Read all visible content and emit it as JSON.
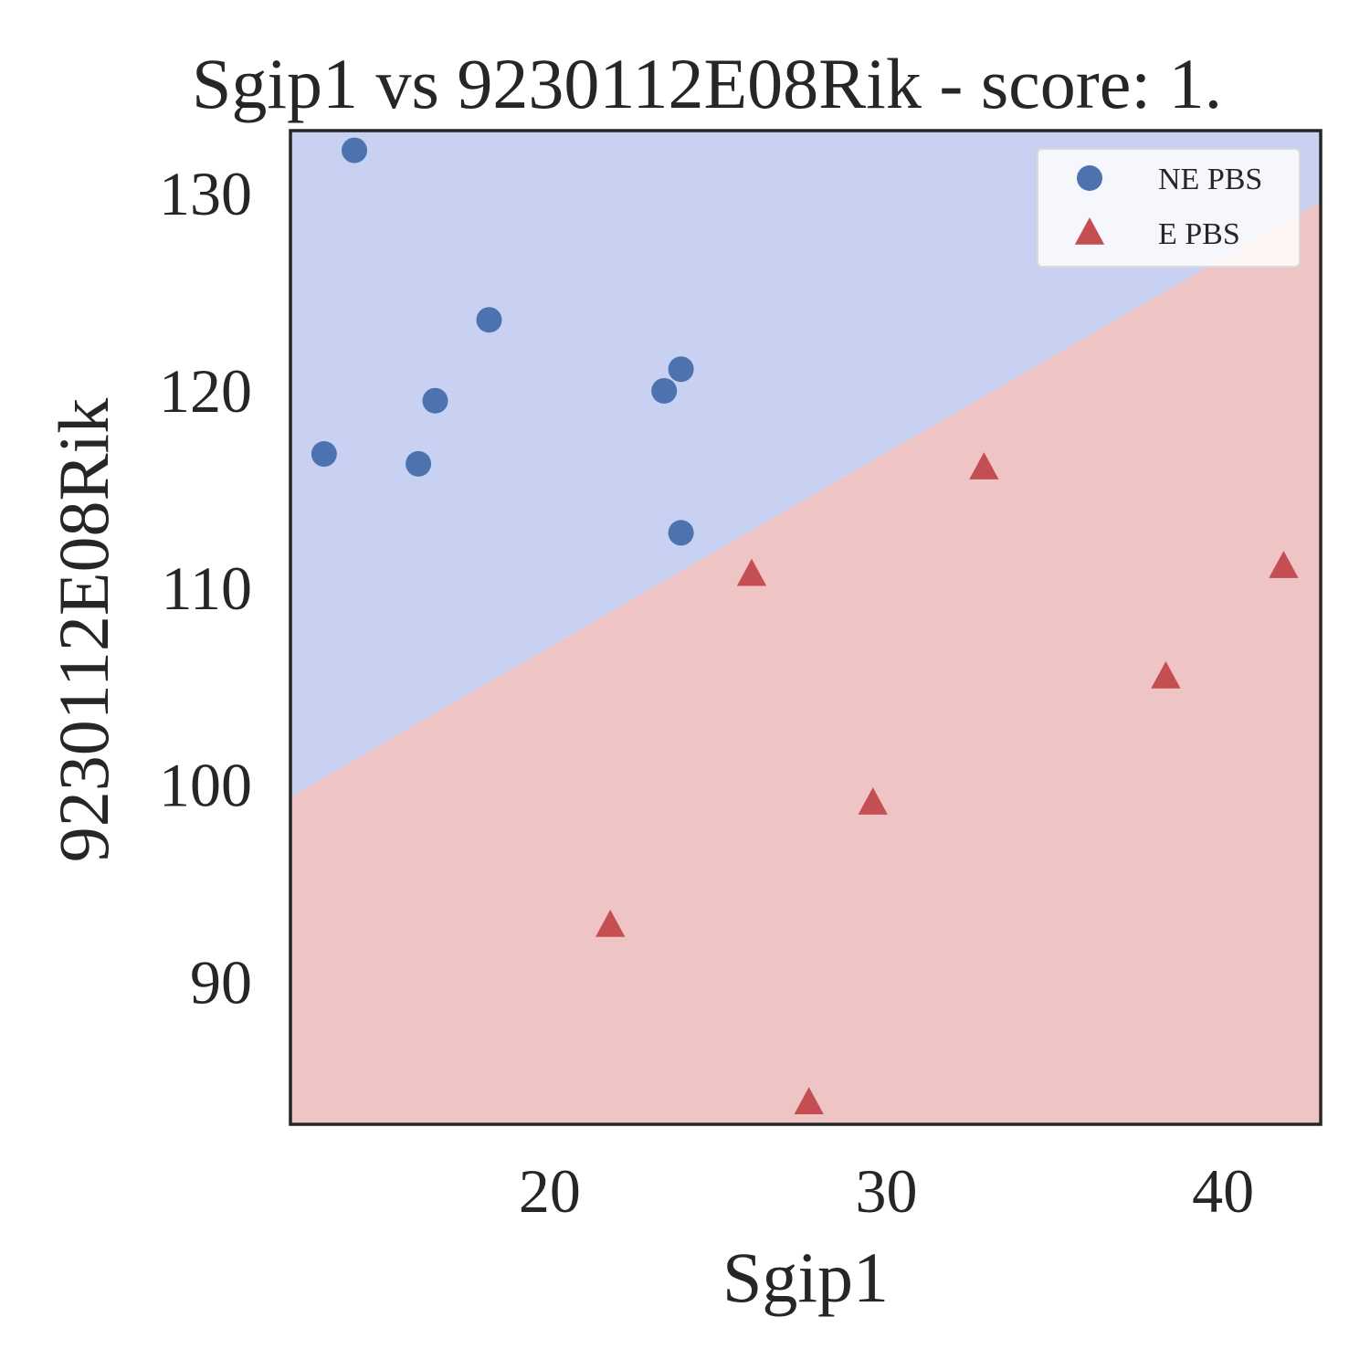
{
  "chart_data": {
    "type": "scatter",
    "title": "Sgip1 vs 9230112E08Rik - score: 1.",
    "xlabel": "Sgip1",
    "ylabel": "9230112E08Rik",
    "xlim": [
      12.3,
      42.9
    ],
    "ylim": [
      82.8,
      133.2
    ],
    "xticks": [
      20,
      30,
      40
    ],
    "yticks": [
      90,
      100,
      110,
      120,
      130
    ],
    "grid": false,
    "legend_position": "top-right",
    "decision_boundary": {
      "line": [
        [
          12.3,
          99.4
        ],
        [
          42.9,
          129.6
        ]
      ],
      "upper_region_color": "#c8d1f1",
      "lower_region_color": "#eec5c4"
    },
    "series": [
      {
        "name": "NE PBS",
        "marker": "circle",
        "color": "#4c72b0",
        "points": [
          [
            14.2,
            132.2
          ],
          [
            13.3,
            116.8
          ],
          [
            16.1,
            116.3
          ],
          [
            16.6,
            119.5
          ],
          [
            18.2,
            123.6
          ],
          [
            23.4,
            120.0
          ],
          [
            23.9,
            121.1
          ],
          [
            23.9,
            112.8
          ]
        ]
      },
      {
        "name": "E PBS",
        "marker": "triangle",
        "color": "#c44e52",
        "points": [
          [
            21.8,
            92.9
          ],
          [
            26.0,
            110.7
          ],
          [
            27.7,
            83.9
          ],
          [
            29.6,
            99.1
          ],
          [
            32.9,
            116.1
          ],
          [
            38.3,
            105.5
          ],
          [
            41.8,
            111.1
          ]
        ]
      }
    ]
  }
}
